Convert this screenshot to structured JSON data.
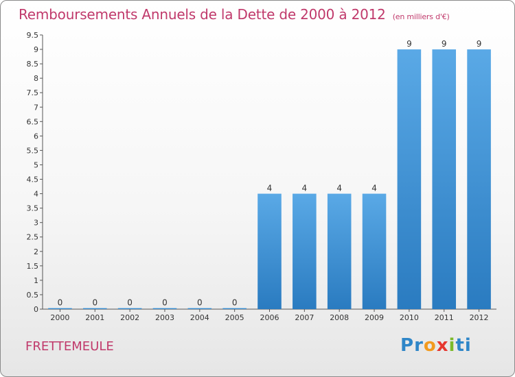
{
  "header": {
    "title": "Remboursements Annuels de la Dette de 2000 à 2012",
    "subtitle": "(en milliers d'€)"
  },
  "footer": {
    "commune": "FRETTEMEULE",
    "logo": [
      "P",
      "r",
      "o",
      "x",
      "i",
      "ti"
    ]
  },
  "chart_data": {
    "type": "bar",
    "title": "Remboursements Annuels de la Dette de 2000 à 2012",
    "subtitle": "(en milliers d'€)",
    "categories": [
      "2000",
      "2001",
      "2002",
      "2003",
      "2004",
      "2005",
      "2006",
      "2007",
      "2008",
      "2009",
      "2010",
      "2011",
      "2012"
    ],
    "values": [
      0,
      0,
      0,
      0,
      0,
      0,
      4,
      4,
      4,
      4,
      9,
      9,
      9
    ],
    "ylim": [
      0,
      9.5
    ],
    "yticks": [
      0,
      0.5,
      1,
      1.5,
      2,
      2.5,
      3,
      3.5,
      4,
      4.5,
      5,
      5.5,
      6,
      6.5,
      7,
      7.5,
      8,
      8.5,
      9,
      9.5
    ],
    "grid": false,
    "bar_color": "#3d8fd6",
    "title_color": "#c0396b"
  }
}
